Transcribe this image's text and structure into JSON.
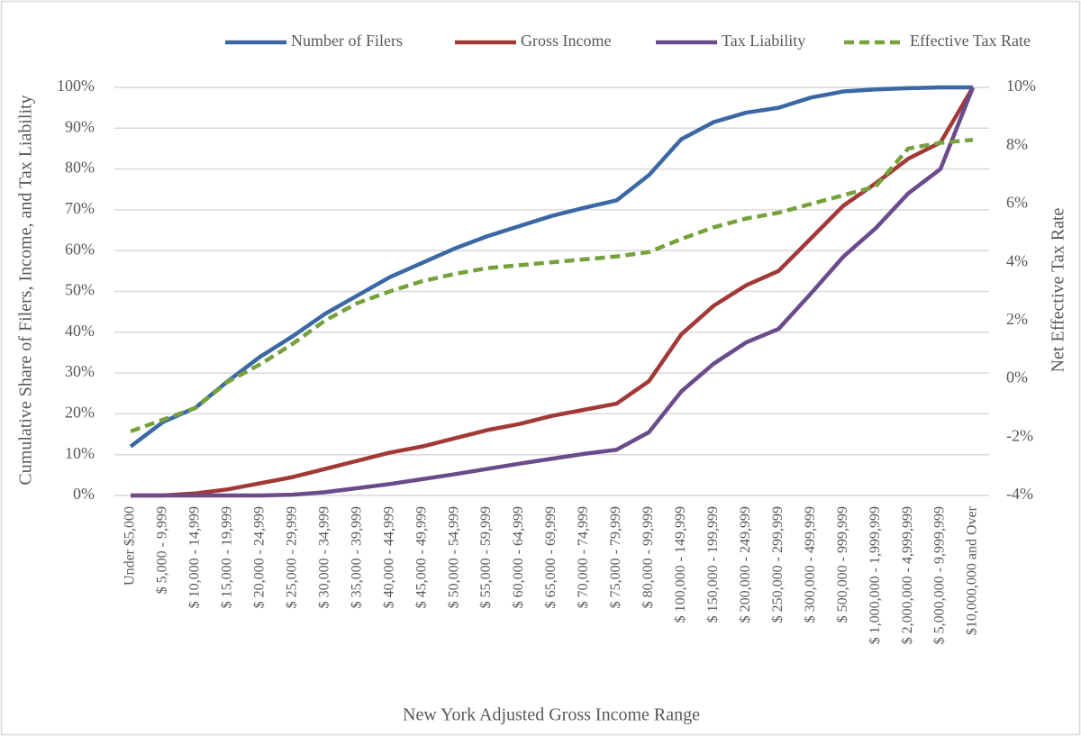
{
  "chart_data": {
    "type": "line",
    "x_label": "New York Adjusted Gross Income Range",
    "y_label": "Cumulative Share of Filers, Income, and Tax Liability",
    "y2_label": "Net Effective Tax Rate",
    "categories": [
      "Under $5,000",
      "$ 5,000 - 9,999",
      "$ 10,000 - 14,999",
      "$ 15,000 - 19,999",
      "$ 20,000 - 24,999",
      "$ 25,000 - 29,999",
      "$ 30,000 - 34,999",
      "$ 35,000 - 39,999",
      "$ 40,000 - 44,999",
      "$ 45,000 - 49,999",
      "$ 50,000 - 54,999",
      "$ 55,000 - 59,999",
      "$ 60,000 - 64,999",
      "$ 65,000 - 69,999",
      "$ 70,000 - 74,999",
      "$ 75,000 - 79,999",
      "$ 80,000 - 99,999",
      "$ 100,000 - 149,999",
      "$ 150,000 - 199,999",
      "$ 200,000 - 249,999",
      "$ 250,000 - 299,999",
      "$ 300,000 - 499,999",
      "$ 500,000 - 999,999",
      "$ 1,000,000 - 1,999,999",
      "$ 2,000,000 - 4,999,999",
      "$ 5,000,000 - 9,999,999",
      "$10,000,000 and Over"
    ],
    "series": [
      {
        "name": "Number of Filers",
        "color": "#3b68a3",
        "values": [
          12,
          18,
          21.5,
          28,
          34,
          39,
          44.5,
          49,
          53.5,
          57,
          60.5,
          63.5,
          66,
          68.5,
          70.5,
          72.3,
          78.5,
          87.3,
          91.5,
          93.8,
          95,
          97.5,
          99,
          99.5,
          99.8,
          100,
          100
        ]
      },
      {
        "name": "Gross Income",
        "color": "#a13a36",
        "values": [
          0,
          0,
          0.5,
          1.5,
          3,
          4.5,
          6.5,
          8.5,
          10.5,
          12,
          14,
          16,
          17.5,
          19.5,
          21,
          22.5,
          28,
          39.5,
          46.5,
          51.5,
          55,
          63,
          71,
          76.5,
          82.5,
          86.5,
          100
        ]
      },
      {
        "name": "Tax Liability",
        "color": "#6a4b8c",
        "values": [
          0,
          0,
          0,
          0,
          0,
          0.2,
          0.8,
          1.8,
          2.8,
          4,
          5.2,
          6.5,
          7.8,
          9,
          10.2,
          11.2,
          15.5,
          25.5,
          32.3,
          37.5,
          40.8,
          49.5,
          58.5,
          65.5,
          74,
          80,
          100
        ]
      },
      {
        "name": "Effective Tax Rate",
        "color": "#76a13b",
        "dashed": true,
        "axis": "y2",
        "values": [
          -1.8,
          -1.4,
          -1.0,
          -0.1,
          0.5,
          1.2,
          2.0,
          2.6,
          3.0,
          3.35,
          3.6,
          3.8,
          3.9,
          4.0,
          4.1,
          4.2,
          4.35,
          4.8,
          5.2,
          5.5,
          5.7,
          6.0,
          6.3,
          6.6,
          7.9,
          8.1,
          8.2
        ]
      }
    ],
    "ylim": [
      0,
      100
    ],
    "yticks": [
      {
        "value": 0,
        "label": "0%"
      },
      {
        "value": 10,
        "label": "10%"
      },
      {
        "value": 20,
        "label": "20%"
      },
      {
        "value": 30,
        "label": "30%"
      },
      {
        "value": 40,
        "label": "40%"
      },
      {
        "value": 50,
        "label": "50%"
      },
      {
        "value": 60,
        "label": "60%"
      },
      {
        "value": 70,
        "label": "70%"
      },
      {
        "value": 80,
        "label": "80%"
      },
      {
        "value": 90,
        "label": "90%"
      },
      {
        "value": 100,
        "label": "100%"
      }
    ],
    "y2lim": [
      -4,
      10
    ],
    "y2ticks": [
      {
        "value": -4,
        "label": "-4%"
      },
      {
        "value": -2,
        "label": "-2%"
      },
      {
        "value": 0,
        "label": "0%"
      },
      {
        "value": 2,
        "label": "2%"
      },
      {
        "value": 4,
        "label": "4%"
      },
      {
        "value": 6,
        "label": "6%"
      },
      {
        "value": 8,
        "label": "8%"
      },
      {
        "value": 10,
        "label": "10%"
      }
    ],
    "grid": true,
    "legend": "top-right"
  }
}
